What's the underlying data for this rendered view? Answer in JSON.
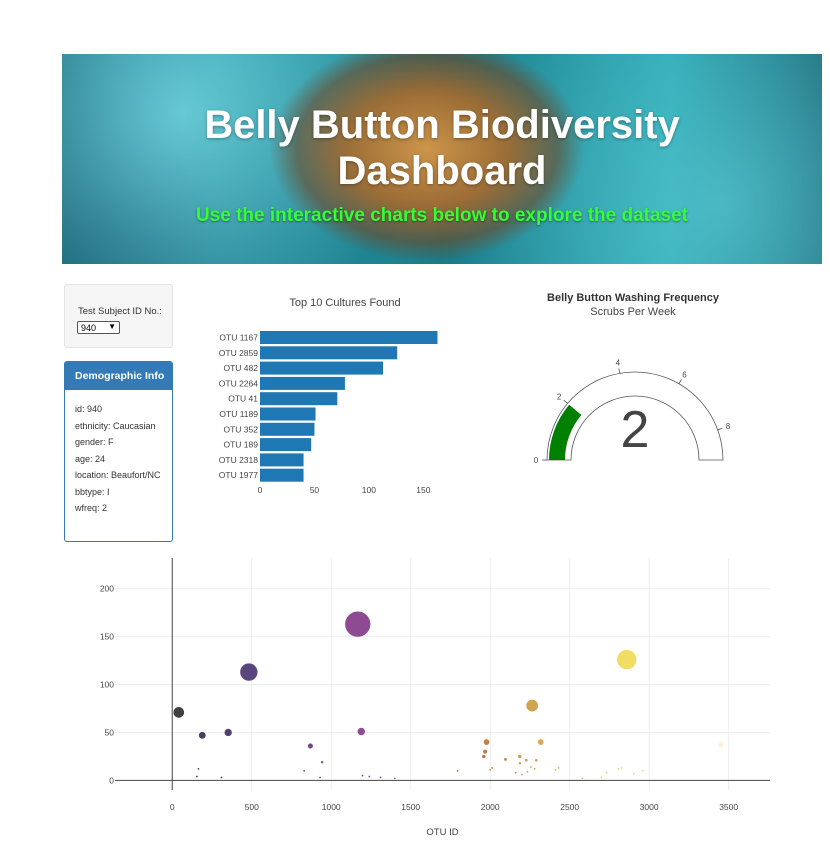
{
  "header": {
    "title_line1": "Belly Button Biodiversity",
    "title_line2": "Dashboard",
    "subtitle": "Use the interactive charts below to explore the dataset"
  },
  "selector": {
    "label": "Test Subject ID No.:",
    "value": "940"
  },
  "demographics": {
    "heading": "Demographic Info",
    "rows": [
      "id: 940",
      "ethnicity: Caucasian",
      "gender: F",
      "age: 24",
      "location: Beaufort/NC",
      "bbtype: I",
      "wfreq: 2"
    ]
  },
  "chart_data": [
    {
      "type": "bar",
      "orientation": "horizontal",
      "title": "Top 10 Cultures Found",
      "categories": [
        "OTU 1167",
        "OTU 2859",
        "OTU 482",
        "OTU 2264",
        "OTU 41",
        "OTU 1189",
        "OTU 352",
        "OTU 189",
        "OTU 2318",
        "OTU 1977"
      ],
      "values": [
        163,
        126,
        113,
        78,
        71,
        51,
        50,
        47,
        40,
        40
      ],
      "xlim": [
        0,
        180
      ],
      "xticks": [
        0,
        50,
        100,
        150
      ],
      "color": "#1f77b4"
    },
    {
      "type": "gauge",
      "title": "Belly Button Washing Frequency",
      "subtitle": "Scrubs Per Week",
      "value": 2,
      "range": [
        0,
        9
      ],
      "ticks": [
        0,
        2,
        4,
        6,
        8
      ],
      "bar_color": "#008000"
    },
    {
      "type": "scatter",
      "subtype": "bubble",
      "xlabel": "OTU ID",
      "xlim": [
        -360,
        3760
      ],
      "ylim": [
        -10,
        232
      ],
      "xticks": [
        0,
        500,
        1000,
        1500,
        2000,
        2500,
        3000,
        3500
      ],
      "yticks": [
        0,
        50,
        100,
        150,
        200
      ],
      "colorscale": "Electric",
      "points": [
        {
          "x": 1167,
          "y": 163,
          "color": "#7a2b80"
        },
        {
          "x": 2859,
          "y": 126,
          "color": "#eed749"
        },
        {
          "x": 482,
          "y": 113,
          "color": "#3d2468"
        },
        {
          "x": 2264,
          "y": 78,
          "color": "#c99231"
        },
        {
          "x": 41,
          "y": 71,
          "color": "#202020"
        },
        {
          "x": 1189,
          "y": 51,
          "color": "#7c2b80"
        },
        {
          "x": 352,
          "y": 50,
          "color": "#341e57"
        },
        {
          "x": 189,
          "y": 47,
          "color": "#2a1b48"
        },
        {
          "x": 2318,
          "y": 40,
          "color": "#d09a34"
        },
        {
          "x": 1977,
          "y": 40,
          "color": "#b56f2f"
        },
        {
          "x": 3450,
          "y": 37,
          "color": "#f9f1c9"
        },
        {
          "x": 869,
          "y": 36,
          "color": "#5c2a78"
        },
        {
          "x": 1968,
          "y": 30,
          "color": "#b06a30"
        },
        {
          "x": 1960,
          "y": 25,
          "color": "#a95a30"
        },
        {
          "x": 2186,
          "y": 25,
          "color": "#c38a33"
        },
        {
          "x": 2096,
          "y": 22,
          "color": "#b97a31"
        },
        {
          "x": 2227,
          "y": 21,
          "color": "#c58e34"
        },
        {
          "x": 2290,
          "y": 21,
          "color": "#cc9634"
        },
        {
          "x": 2187,
          "y": 18,
          "color": "#c07f31"
        },
        {
          "x": 943,
          "y": 19,
          "color": "#662a7e"
        },
        {
          "x": 2012,
          "y": 13,
          "color": "#b46830"
        },
        {
          "x": 2256,
          "y": 14,
          "color": "#c89033"
        },
        {
          "x": 2431,
          "y": 13,
          "color": "#d4a334"
        },
        {
          "x": 2410,
          "y": 11,
          "color": "#d29f35"
        },
        {
          "x": 2826,
          "y": 13,
          "color": "#e9cd44"
        },
        {
          "x": 2806,
          "y": 12,
          "color": "#e6c840"
        },
        {
          "x": 2960,
          "y": 10,
          "color": "#efd84c"
        },
        {
          "x": 2732,
          "y": 8,
          "color": "#e3c03d"
        },
        {
          "x": 165,
          "y": 12,
          "color": "#2a1b48"
        },
        {
          "x": 830,
          "y": 10,
          "color": "#5a2a78"
        },
        {
          "x": 1795,
          "y": 10,
          "color": "#9a4f32"
        },
        {
          "x": 2000,
          "y": 11,
          "color": "#b56a30"
        },
        {
          "x": 2280,
          "y": 12,
          "color": "#ca9334"
        },
        {
          "x": 2160,
          "y": 8,
          "color": "#bd7a31"
        },
        {
          "x": 2234,
          "y": 9,
          "color": "#c68e34"
        },
        {
          "x": 2200,
          "y": 6,
          "color": "#c38633"
        },
        {
          "x": 2903,
          "y": 7,
          "color": "#ecd347"
        },
        {
          "x": 1197,
          "y": 5,
          "color": "#7c2b80"
        },
        {
          "x": 1240,
          "y": 4,
          "color": "#7e2b80"
        },
        {
          "x": 1310,
          "y": 3,
          "color": "#842f7e"
        },
        {
          "x": 155,
          "y": 4,
          "color": "#2a1b48"
        },
        {
          "x": 310,
          "y": 3,
          "color": "#331e55"
        },
        {
          "x": 930,
          "y": 3,
          "color": "#632a7e"
        },
        {
          "x": 1400,
          "y": 2,
          "color": "#8a347c"
        },
        {
          "x": 2580,
          "y": 2,
          "color": "#dcb33a"
        },
        {
          "x": 2700,
          "y": 3,
          "color": "#e2be3d"
        }
      ]
    }
  ]
}
